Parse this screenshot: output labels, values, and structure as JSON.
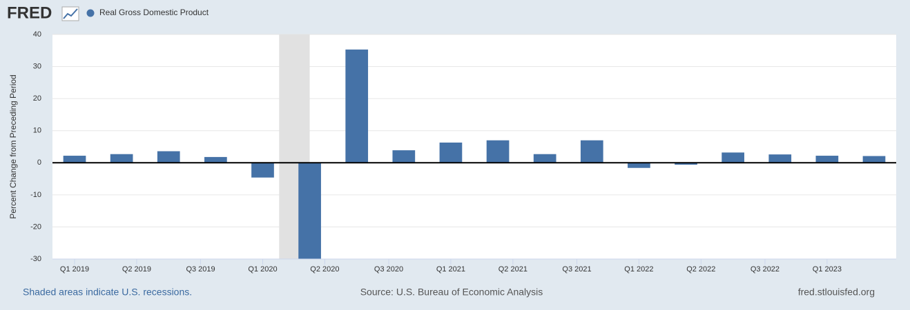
{
  "logo": "FRED",
  "chart_data": {
    "type": "bar",
    "series": [
      {
        "name": "Real Gross Domestic Product",
        "color": "#4572a7",
        "values": [
          2.2,
          2.7,
          3.6,
          1.8,
          -4.6,
          -29.9,
          35.3,
          3.9,
          6.3,
          7.0,
          2.7,
          7.0,
          -1.6,
          -0.6,
          3.2,
          2.6,
          2.2,
          2.1
        ]
      }
    ],
    "x": [
      0,
      1,
      2,
      3,
      4,
      5,
      6,
      7,
      8,
      9,
      10,
      11,
      12,
      13,
      14,
      15,
      16,
      17
    ],
    "xlim": [
      -0.47,
      17.47
    ],
    "xticks": [
      {
        "value": 0,
        "label": "Q1 2019"
      },
      {
        "value": 1.32,
        "label": "Q2 2019"
      },
      {
        "value": 2.68,
        "label": "Q3 2019"
      },
      {
        "value": 4,
        "label": "Q1 2020"
      },
      {
        "value": 5.32,
        "label": "Q2 2020"
      },
      {
        "value": 6.68,
        "label": "Q3 2020"
      },
      {
        "value": 8,
        "label": "Q1 2021"
      },
      {
        "value": 9.32,
        "label": "Q2 2021"
      },
      {
        "value": 10.68,
        "label": "Q3 2021"
      },
      {
        "value": 12,
        "label": "Q1 2022"
      },
      {
        "value": 13.32,
        "label": "Q2 2022"
      },
      {
        "value": 14.68,
        "label": "Q3 2022"
      },
      {
        "value": 16,
        "label": "Q1 2023"
      }
    ],
    "ylim": [
      -30,
      40
    ],
    "yticks": [
      -30,
      -20,
      -10,
      0,
      10,
      20,
      30,
      40
    ],
    "ylabel": "Percent Change from Preceding Period",
    "grid": true,
    "recessions": [
      {
        "start": 4.35,
        "end": 5
      }
    ]
  },
  "footer": {
    "note": "Shaded areas indicate U.S. recessions.",
    "source": "Source: U.S. Bureau of Economic Analysis",
    "site": "fred.stlouisfed.org"
  }
}
